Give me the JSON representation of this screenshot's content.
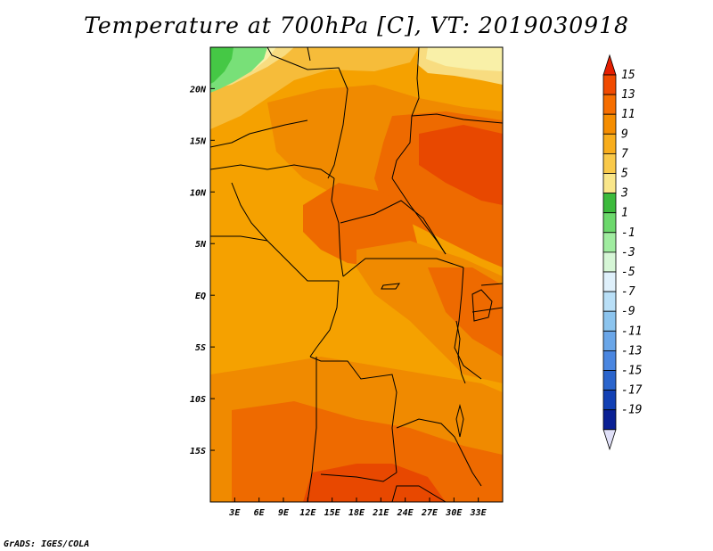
{
  "title": "Temperature at 700hPa [C], VT: 2019030918",
  "credit": "GrADS: IGES/COLA",
  "map": {
    "lon_range": [
      0,
      36
    ],
    "lat_range": [
      -20,
      24
    ],
    "lon_labels": [
      "3E",
      "6E",
      "9E",
      "12E",
      "15E",
      "18E",
      "21E",
      "24E",
      "27E",
      "30E",
      "33E"
    ],
    "lon_values": [
      3,
      6,
      9,
      12,
      15,
      18,
      21,
      24,
      27,
      30,
      33
    ],
    "lat_labels": [
      "20N",
      "15N",
      "10N",
      "5N",
      "EQ",
      "5S",
      "10S",
      "15S"
    ],
    "lat_values": [
      20,
      15,
      10,
      5,
      0,
      -5,
      -10,
      -15
    ],
    "colors": {
      "base": "#f5a100",
      "band_9_11": "#f08a00",
      "band_11_13": "#ee6a00",
      "band_13_15": "#e84800",
      "band_7_9": "#f6bc3a",
      "band_5_7": "#f8dc80",
      "band_3_5": "#f9f0a8",
      "band_1_3": "#45c845",
      "band_m1_1": "#78e078"
    }
  },
  "colorbar": {
    "labels": [
      "15",
      "13",
      "11",
      "9",
      "7",
      "5",
      "3",
      "1",
      "-1",
      "-3",
      "-5",
      "-7",
      "-9",
      "-11",
      "-13",
      "-15",
      "-17",
      "-19"
    ],
    "colors": [
      "#e41e00",
      "#f04a00",
      "#f66e00",
      "#f58d00",
      "#f8ad1c",
      "#f9c94a",
      "#f9e68a",
      "#3cba3c",
      "#6cd86c",
      "#a0eca0",
      "#d6f6d6",
      "#dff0fb",
      "#b9dff7",
      "#8cc4ee",
      "#6aa6e8",
      "#4a86e0",
      "#2a64cc",
      "#1240b4",
      "#0a2094",
      "#070a66"
    ],
    "top_color": "#e41e00",
    "bottom_color": "#e0e0f8"
  }
}
